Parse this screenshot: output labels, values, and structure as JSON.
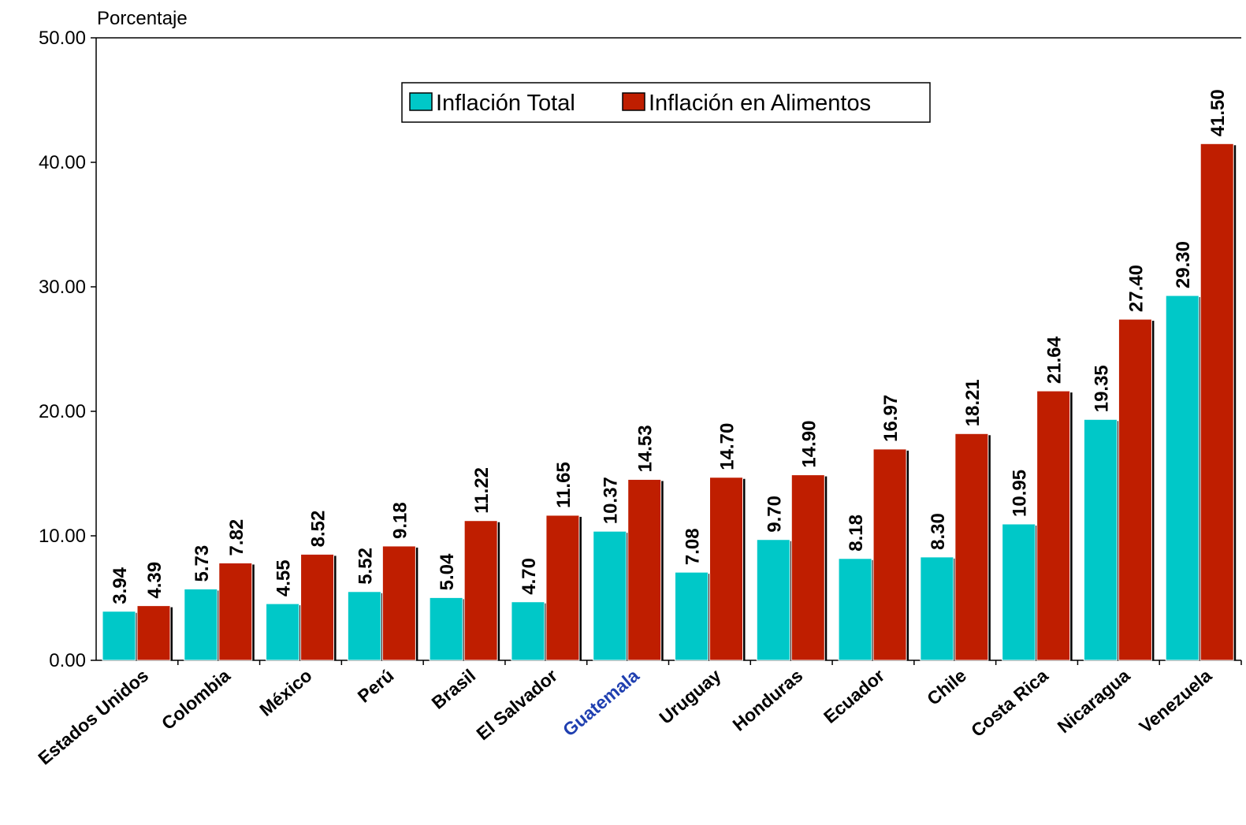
{
  "chart_data": {
    "type": "bar",
    "ylabel": "Porcentaje",
    "ylim": [
      0,
      50
    ],
    "yticks": [
      "0.00",
      "10.00",
      "20.00",
      "30.00",
      "40.00",
      "50.00"
    ],
    "grid": false,
    "legend_position": "top-center",
    "categories": [
      "Estados Unidos",
      "Colombia",
      "México",
      "Perú",
      "Brasil",
      "El Salvador",
      "Guatemala",
      "Uruguay",
      "Honduras",
      "Ecuador",
      "Chile",
      "Costa Rica",
      "Nicaragua",
      "Venezuela"
    ],
    "highlight_category": "Guatemala",
    "series": [
      {
        "name": "Inflación Total",
        "color": "#00c8c8",
        "values": [
          3.94,
          5.73,
          4.55,
          5.52,
          5.04,
          4.7,
          10.37,
          7.08,
          9.7,
          8.18,
          8.3,
          10.95,
          19.35,
          29.3
        ],
        "labels": [
          "3.94",
          "5.73",
          "4.55",
          "5.52",
          "5.04",
          "4.70",
          "10.37",
          "7.08",
          "9.70",
          "8.18",
          "8.30",
          "10.95",
          "19.35",
          "29.30"
        ]
      },
      {
        "name": "Inflación en Alimentos",
        "color": "#bf1e00",
        "values": [
          4.39,
          7.82,
          8.52,
          9.18,
          11.22,
          11.65,
          14.53,
          14.7,
          14.9,
          16.97,
          18.21,
          21.64,
          27.4,
          41.5
        ],
        "labels": [
          "4.39",
          "7.82",
          "8.52",
          "9.18",
          "11.22",
          "11.65",
          "14.53",
          "14.70",
          "14.90",
          "16.97",
          "18.21",
          "21.64",
          "27.40",
          "41.50"
        ]
      }
    ],
    "colors": {
      "highlight_label": "#1f3fb0",
      "axis": "#000000"
    }
  }
}
